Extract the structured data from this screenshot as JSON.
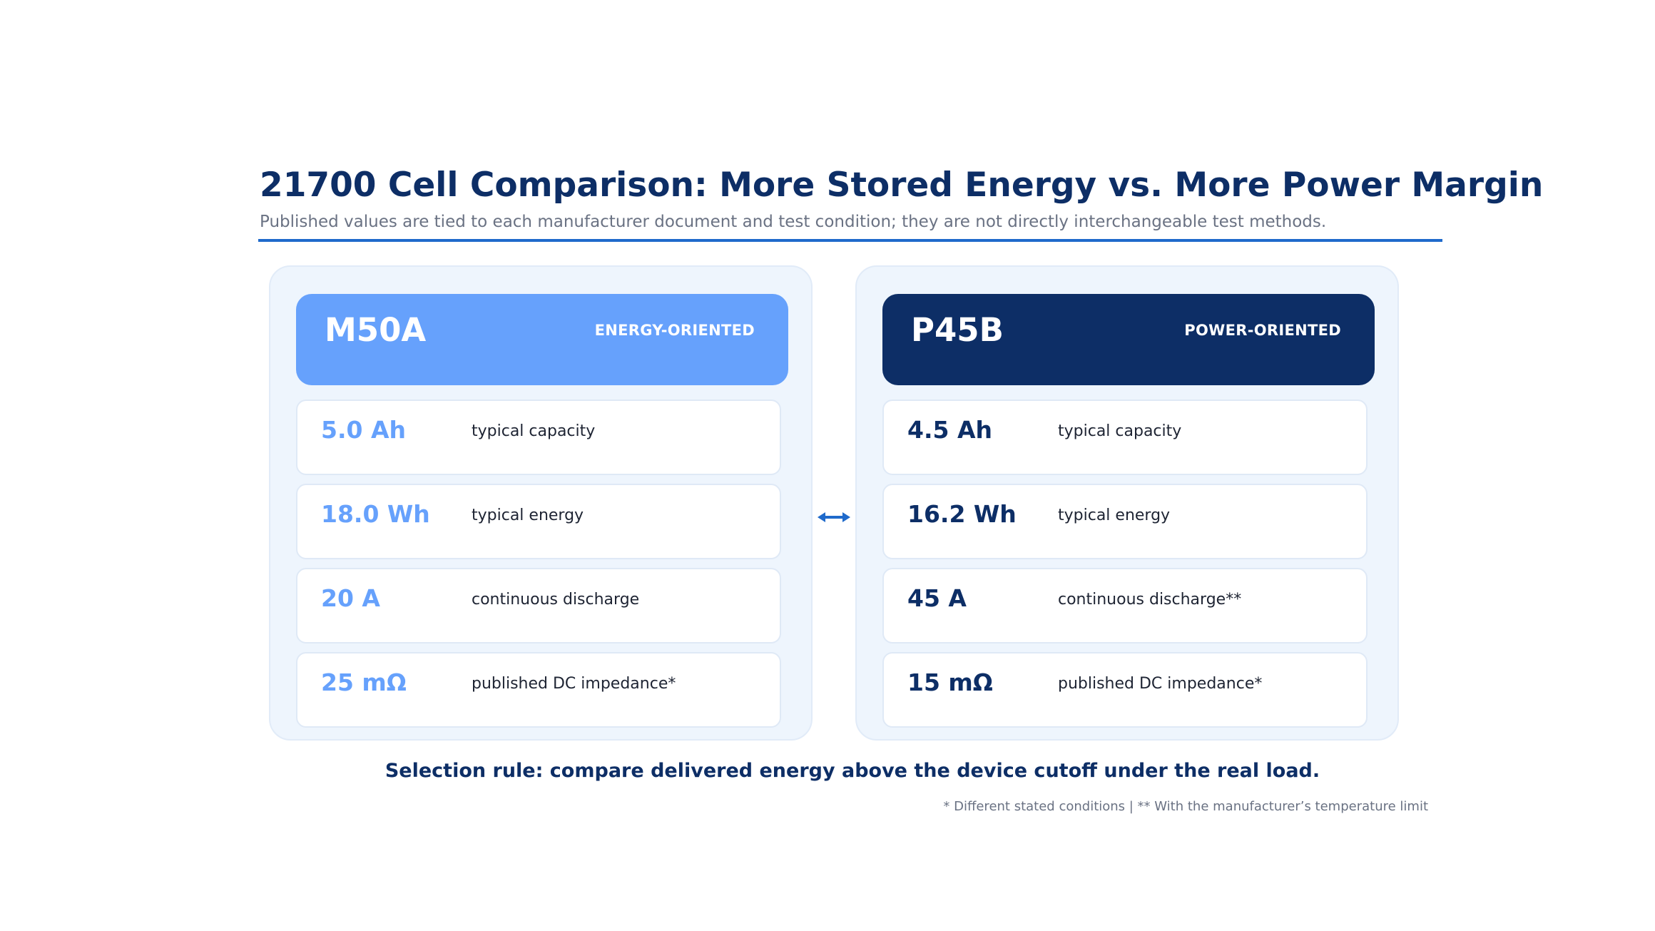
{
  "title": "21700 Cell Comparison: More Stored Energy vs. More Power Margin",
  "subtitle": "Published values are tied to each manufacturer document and test condition; they are not directly interchangeable test methods.",
  "colors": {
    "title": "#0d2e66",
    "rule": "#1f6acb",
    "energy_accent": "#66a1fc",
    "power_accent": "#0d2e66",
    "panel_bg": "#eef5fd"
  },
  "cells": [
    {
      "name": "M50A",
      "tag": "ENERGY-ORIENTED",
      "specs": [
        {
          "value": "5.0 Ah",
          "label": "typical capacity"
        },
        {
          "value": "18.0 Wh",
          "label": "typical energy"
        },
        {
          "value": "20 A",
          "label": "continuous discharge"
        },
        {
          "value": "25 mΩ",
          "label": "published DC impedance*"
        }
      ]
    },
    {
      "name": "P45B",
      "tag": "POWER-ORIENTED",
      "specs": [
        {
          "value": "4.5 Ah",
          "label": "typical capacity"
        },
        {
          "value": "16.2 Wh",
          "label": "typical energy"
        },
        {
          "value": "45 A",
          "label": "continuous discharge**"
        },
        {
          "value": "15 mΩ",
          "label": "published DC impedance*"
        }
      ]
    }
  ],
  "compare_icon": "double-arrow-icon",
  "selection_rule": "Selection rule: compare delivered energy above the device cutoff under the real load.",
  "footnote": "* Different stated conditions  |  ** With the manufacturer’s temperature limit"
}
